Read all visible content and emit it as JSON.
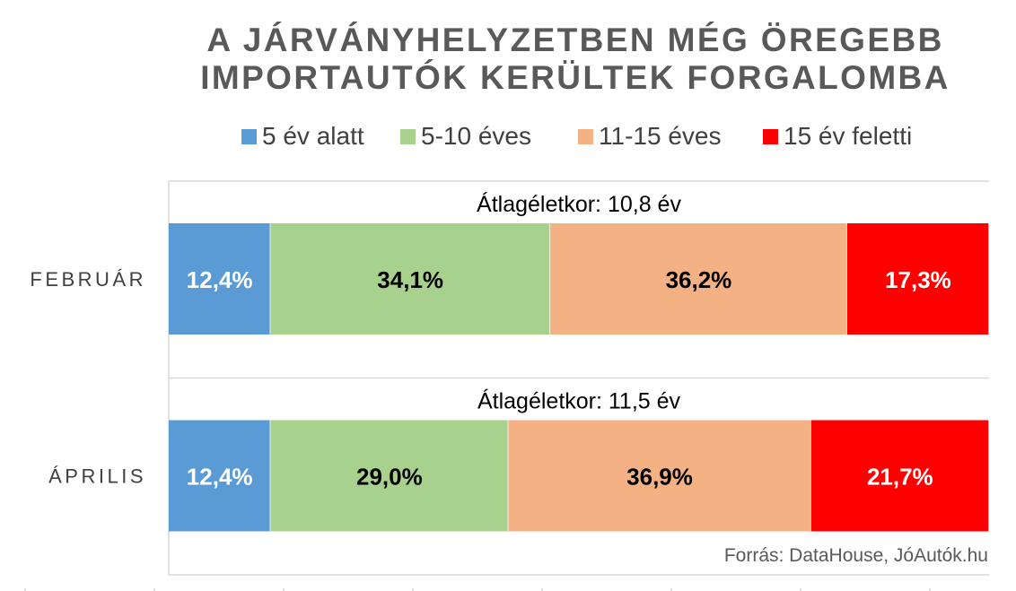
{
  "chart_data": {
    "type": "stacked-bar",
    "title": "A JÁRVÁNYHELYZETBEN MÉG ÖREGEBB IMPORTAUTÓK KERÜLTEK FORGALOMBA",
    "title_lines": [
      "A JÁRVÁNYHELYZETBEN MÉG ÖREGEBB",
      "IMPORTAUTÓK KERÜLTEK FORGALOMBA"
    ],
    "categories": [
      "FEBRUÁR",
      "ÁPRILIS"
    ],
    "series": [
      {
        "name": "5 év alatt",
        "color": "#5b9bd5",
        "values": [
          12.4,
          12.4
        ],
        "labels": [
          "12,4%",
          "12,4%"
        ],
        "label_color": "#ffffff"
      },
      {
        "name": "5-10 éves",
        "color": "#a9d18e",
        "values": [
          34.1,
          29.0
        ],
        "labels": [
          "34,1%",
          "29,0%"
        ],
        "label_color": "#000000"
      },
      {
        "name": "11-15 éves",
        "color": "#f4b183",
        "values": [
          36.2,
          36.9
        ],
        "labels": [
          "36,2%",
          "36,9%"
        ],
        "label_color": "#000000"
      },
      {
        "name": "15 év feletti",
        "color": "#ff0000",
        "values": [
          17.3,
          21.7
        ],
        "labels": [
          "17,3%",
          "21,7%"
        ],
        "label_color": "#ffffff"
      }
    ],
    "annotations": [
      "Átlagéletkor: 10,8 év",
      "Átlagéletkor: 11,5 év"
    ],
    "legend_position": "top",
    "grid": false
  },
  "source": "Forrás: DataHouse, JóAutók.hu"
}
